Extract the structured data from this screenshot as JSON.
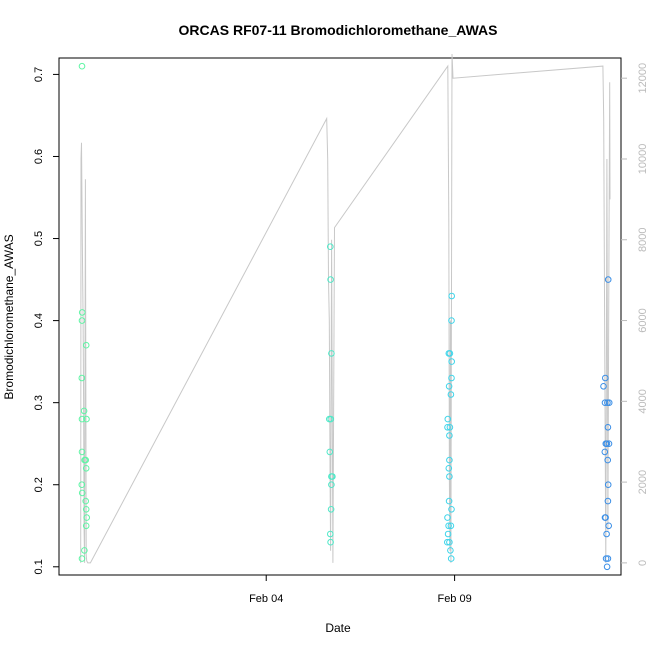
{
  "chart_data": {
    "type": "scatter",
    "title": "ORCAS RF07-11 Bromodichloromethane_AWAS",
    "xlabel": "Date",
    "ylabel": "Bromodichloromethane_AWAS",
    "x_ticks": [
      "Feb 04",
      "Feb 09"
    ],
    "y_ticks": [
      "0.1",
      "0.2",
      "0.3",
      "0.4",
      "0.5",
      "0.6",
      "0.7"
    ],
    "y2_ticks": [
      "0",
      "2000",
      "4000",
      "6000",
      "8000",
      "10000",
      "12000"
    ],
    "xlim": [
      "2016-01-29T12:00",
      "2016-02-13T10:00"
    ],
    "ylim": [
      0.09,
      0.72
    ],
    "y2lim": [
      -300,
      12500
    ],
    "grid": false,
    "colors": {
      "rf07": "#5ff5a5",
      "rf08": "#4fe8c8",
      "rf09": "#40d5ea",
      "rf11": "#3a8ee6",
      "altitude": "#c8c8c8",
      "right_axis": "#bbbbbb"
    },
    "series": [
      {
        "color": "#5ff5a5",
        "points": [
          [
            "2016-01-30T02:40",
            0.71
          ],
          [
            "2016-01-30T02:45",
            0.41
          ],
          [
            "2016-01-30T02:40",
            0.4
          ],
          [
            "2016-01-30T05:20",
            0.37
          ],
          [
            "2016-01-30T02:30",
            0.33
          ],
          [
            "2016-01-30T04:00",
            0.29
          ],
          [
            "2016-01-30T02:40",
            0.28
          ],
          [
            "2016-01-30T05:30",
            0.28
          ],
          [
            "2016-01-30T02:40",
            0.24
          ],
          [
            "2016-01-30T04:20",
            0.23
          ],
          [
            "2016-01-30T05:00",
            0.23
          ],
          [
            "2016-01-30T05:20",
            0.22
          ],
          [
            "2016-01-30T02:30",
            0.2
          ],
          [
            "2016-01-30T02:45",
            0.19
          ],
          [
            "2016-01-30T05:00",
            0.18
          ],
          [
            "2016-01-30T05:20",
            0.17
          ],
          [
            "2016-01-30T05:40",
            0.16
          ],
          [
            "2016-01-30T05:20",
            0.15
          ],
          [
            "2016-01-30T04:10",
            0.12
          ],
          [
            "2016-01-30T02:40",
            0.11
          ]
        ]
      },
      {
        "color": "#4fe8c8",
        "points": [
          [
            "2016-02-05T16:50",
            0.49
          ],
          [
            "2016-02-05T17:00",
            0.45
          ],
          [
            "2016-02-05T17:30",
            0.36
          ],
          [
            "2016-02-05T16:10",
            0.28
          ],
          [
            "2016-02-05T17:10",
            0.28
          ],
          [
            "2016-02-05T16:30",
            0.24
          ],
          [
            "2016-02-05T17:30",
            0.21
          ],
          [
            "2016-02-05T18:10",
            0.21
          ],
          [
            "2016-02-05T17:30",
            0.2
          ],
          [
            "2016-02-05T17:20",
            0.17
          ],
          [
            "2016-02-05T16:50",
            0.14
          ],
          [
            "2016-02-05T17:00",
            0.13
          ]
        ]
      },
      {
        "color": "#40d5ea",
        "points": [
          [
            "2016-02-08T22:10",
            0.43
          ],
          [
            "2016-02-08T22:00",
            0.4
          ],
          [
            "2016-02-08T20:20",
            0.36
          ],
          [
            "2016-02-08T21:00",
            0.36
          ],
          [
            "2016-02-08T22:10",
            0.35
          ],
          [
            "2016-02-08T22:00",
            0.33
          ],
          [
            "2016-02-08T20:30",
            0.32
          ],
          [
            "2016-02-08T21:40",
            0.31
          ],
          [
            "2016-02-08T19:40",
            0.28
          ],
          [
            "2016-02-08T21:00",
            0.27
          ],
          [
            "2016-02-08T19:30",
            0.27
          ],
          [
            "2016-02-08T20:40",
            0.26
          ],
          [
            "2016-02-08T20:40",
            0.23
          ],
          [
            "2016-02-08T20:20",
            0.22
          ],
          [
            "2016-02-08T20:40",
            0.21
          ],
          [
            "2016-02-08T20:30",
            0.18
          ],
          [
            "2016-02-08T22:00",
            0.17
          ],
          [
            "2016-02-08T19:30",
            0.16
          ],
          [
            "2016-02-08T20:10",
            0.15
          ],
          [
            "2016-02-08T21:40",
            0.15
          ],
          [
            "2016-02-08T19:50",
            0.14
          ],
          [
            "2016-02-08T20:40",
            0.13
          ],
          [
            "2016-02-08T19:20",
            0.13
          ],
          [
            "2016-02-08T21:20",
            0.12
          ],
          [
            "2016-02-08T21:50",
            0.11
          ]
        ]
      },
      {
        "color": "#3a8ee6",
        "points": [
          [
            "2016-02-13T01:50",
            0.45
          ],
          [
            "2016-02-13T00:00",
            0.33
          ],
          [
            "2016-02-12T22:50",
            0.32
          ],
          [
            "2016-02-12T23:50",
            0.3
          ],
          [
            "2016-02-13T01:20",
            0.3
          ],
          [
            "2016-02-13T02:30",
            0.3
          ],
          [
            "2016-02-13T01:40",
            0.27
          ],
          [
            "2016-02-13T00:20",
            0.25
          ],
          [
            "2016-02-13T01:00",
            0.25
          ],
          [
            "2016-02-13T02:20",
            0.25
          ],
          [
            "2016-02-12T23:40",
            0.24
          ],
          [
            "2016-02-13T01:30",
            0.23
          ],
          [
            "2016-02-13T01:50",
            0.2
          ],
          [
            "2016-02-13T01:40",
            0.18
          ],
          [
            "2016-02-12T23:50",
            0.16
          ],
          [
            "2016-02-13T00:10",
            0.16
          ],
          [
            "2016-02-13T02:10",
            0.15
          ],
          [
            "2016-02-13T00:50",
            0.14
          ],
          [
            "2016-02-13T00:30",
            0.11
          ],
          [
            "2016-02-13T01:40",
            0.11
          ],
          [
            "2016-02-13T01:10",
            0.1
          ]
        ]
      }
    ],
    "altitude_series": [
      [
        "2016-01-30T01:50",
        0
      ],
      [
        "2016-01-30T02:00",
        10000
      ],
      [
        "2016-01-30T02:20",
        10400
      ],
      [
        "2016-01-30T02:50",
        8000
      ],
      [
        "2016-01-30T03:20",
        6000
      ],
      [
        "2016-01-30T03:40",
        4000
      ],
      [
        "2016-01-30T04:00",
        800
      ],
      [
        "2016-01-30T04:20",
        0
      ],
      [
        "2016-01-30T04:50",
        9500
      ],
      [
        "2016-01-30T05:20",
        200
      ],
      [
        "2016-01-30T05:40",
        50
      ],
      [
        "2016-01-30T06:20",
        0
      ],
      [
        "2016-01-30T08:00",
        0
      ],
      [
        "2016-02-05T14:30",
        11000
      ],
      [
        "2016-02-05T15:10",
        10000
      ],
      [
        "2016-02-05T15:40",
        7000
      ],
      [
        "2016-02-05T16:10",
        6000
      ],
      [
        "2016-02-05T16:40",
        2000
      ],
      [
        "2016-02-05T17:00",
        300
      ],
      [
        "2016-02-05T17:40",
        8000
      ],
      [
        "2016-02-05T18:30",
        0
      ],
      [
        "2016-02-05T19:30",
        8300
      ],
      [
        "2016-02-08T19:40",
        12300
      ],
      [
        "2016-02-08T20:20",
        8500
      ],
      [
        "2016-02-08T20:40",
        2000
      ],
      [
        "2016-02-08T21:00",
        300
      ],
      [
        "2016-02-08T21:20",
        6000
      ],
      [
        "2016-02-08T21:40",
        0
      ],
      [
        "2016-02-08T22:20",
        12600
      ],
      [
        "2016-02-08T23:00",
        12000
      ],
      [
        "2016-02-12T22:30",
        12300
      ],
      [
        "2016-02-12T23:00",
        11000
      ],
      [
        "2016-02-12T23:40",
        5000
      ],
      [
        "2016-02-13T00:20",
        0
      ],
      [
        "2016-02-13T00:40",
        4000
      ],
      [
        "2016-02-13T01:00",
        10000
      ],
      [
        "2016-02-13T01:40",
        800
      ],
      [
        "2016-02-13T02:20",
        8000
      ],
      [
        "2016-02-13T02:50",
        11900
      ],
      [
        "2016-02-13T03:00",
        9000
      ]
    ]
  }
}
